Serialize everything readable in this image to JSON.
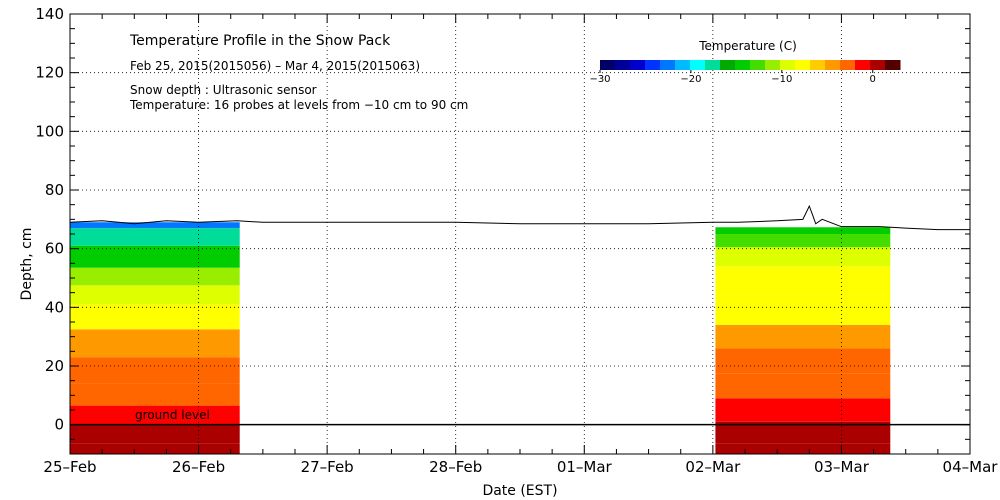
{
  "chart_data": {
    "type": "heatmap",
    "title": "Temperature Profile in the Snow Pack",
    "subtitle": "Feb 25, 2015(2015056) – Mar  4, 2015(2015063)",
    "notes": [
      "Snow depth : Ultrasonic sensor",
      "Temperature: 16 probes at levels from −10 cm to 90 cm"
    ],
    "xlabel": "Date (EST)",
    "ylabel": "Depth, cm",
    "x_ticks": [
      "25–Feb",
      "26–Feb",
      "27–Feb",
      "28–Feb",
      "01–Mar",
      "02–Mar",
      "03–Mar",
      "04–Mar"
    ],
    "x_range_days": [
      0,
      7
    ],
    "ylim": [
      -10,
      140
    ],
    "y_ticks": [
      0,
      20,
      40,
      60,
      80,
      100,
      120,
      140
    ],
    "grid": true,
    "ground_label": "ground level",
    "ground_level": 0,
    "colorbar": {
      "title": "Temperature (C)",
      "range": [
        -30,
        3
      ],
      "ticks": [
        -30,
        -20,
        -10,
        0
      ],
      "colors": [
        "#000066",
        "#000099",
        "#0000cc",
        "#0033ff",
        "#0077ff",
        "#00bbff",
        "#00ffff",
        "#00dd99",
        "#00aa00",
        "#00cc00",
        "#44dd00",
        "#99ee00",
        "#ddff00",
        "#ffff00",
        "#ffcc00",
        "#ff9900",
        "#ff6600",
        "#ff0000",
        "#aa0000",
        "#550000"
      ]
    },
    "snow_depth": {
      "x": [
        0,
        0.25,
        0.5,
        0.75,
        1.0,
        1.3,
        1.5,
        2.0,
        2.5,
        3.0,
        3.5,
        4.0,
        4.5,
        5.0,
        5.2,
        5.5,
        5.7,
        5.75,
        5.78,
        5.8,
        5.85,
        6.0,
        6.3,
        6.5,
        6.75,
        7.0
      ],
      "y": [
        69,
        69.5,
        68.5,
        69.5,
        69,
        69.5,
        69,
        69,
        69,
        69,
        68.5,
        68.5,
        68.5,
        69,
        69,
        69.5,
        70,
        74.5,
        71,
        68.5,
        70,
        67.5,
        67.5,
        67,
        66.5,
        66.5
      ]
    },
    "temperature_periods": [
      {
        "x_range": [
          0,
          1.32
        ],
        "levels": [
          {
            "depth": -10,
            "temp": 1
          },
          {
            "depth": -3,
            "temp": 0
          },
          {
            "depth": 3,
            "temp": -1
          },
          {
            "depth": 10,
            "temp": -2
          },
          {
            "depth": 18,
            "temp": -3
          },
          {
            "depth": 28,
            "temp": -5
          },
          {
            "depth": 37,
            "temp": -7
          },
          {
            "depth": 45,
            "temp": -9
          },
          {
            "depth": 50,
            "temp": -11
          },
          {
            "depth": 57,
            "temp": -14
          },
          {
            "depth": 65,
            "temp": -18
          },
          {
            "depth": 69,
            "temp": -22
          }
        ]
      },
      {
        "x_range": [
          5.02,
          6.38
        ],
        "levels": [
          {
            "depth": -10,
            "temp": 1
          },
          {
            "depth": -3,
            "temp": 0
          },
          {
            "depth": 5,
            "temp": -1
          },
          {
            "depth": 13,
            "temp": -2
          },
          {
            "depth": 22,
            "temp": -3
          },
          {
            "depth": 30,
            "temp": -5
          },
          {
            "depth": 38,
            "temp": -7
          },
          {
            "depth": 50,
            "temp": -8
          },
          {
            "depth": 58,
            "temp": -9
          },
          {
            "depth": 63,
            "temp": -12
          },
          {
            "depth": 67,
            "temp": -15
          }
        ]
      }
    ]
  }
}
